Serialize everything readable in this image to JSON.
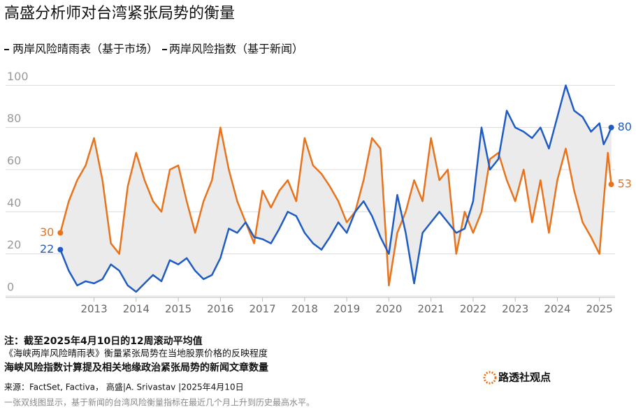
{
  "chart_data": {
    "type": "line",
    "title": "高盛分析师对台湾紧张局势的衡量",
    "x": [
      2012.2,
      2012.4,
      2012.6,
      2012.8,
      2013.0,
      2013.2,
      2013.4,
      2013.6,
      2013.8,
      2014.0,
      2014.2,
      2014.4,
      2014.6,
      2014.8,
      2015.0,
      2015.2,
      2015.4,
      2015.6,
      2015.8,
      2016.0,
      2016.2,
      2016.4,
      2016.6,
      2016.8,
      2017.0,
      2017.2,
      2017.4,
      2017.6,
      2017.8,
      2018.0,
      2018.2,
      2018.4,
      2018.6,
      2018.8,
      2019.0,
      2019.2,
      2019.4,
      2019.6,
      2019.8,
      2020.0,
      2020.2,
      2020.4,
      2020.6,
      2020.8,
      2021.0,
      2021.2,
      2021.4,
      2021.6,
      2021.8,
      2022.0,
      2022.2,
      2022.4,
      2022.6,
      2022.8,
      2023.0,
      2023.2,
      2023.4,
      2023.6,
      2023.8,
      2024.0,
      2024.2,
      2024.4,
      2024.6,
      2024.8,
      2025.0,
      2025.1,
      2025.2,
      2025.28
    ],
    "series": [
      {
        "name": "两岸风险晴雨表（基于市场）",
        "color": "#e8731c",
        "values": [
          30,
          45,
          55,
          62,
          75,
          55,
          25,
          20,
          52,
          68,
          55,
          45,
          40,
          60,
          62,
          45,
          30,
          45,
          55,
          80,
          60,
          45,
          35,
          25,
          50,
          42,
          50,
          55,
          45,
          75,
          62,
          58,
          52,
          45,
          35,
          40,
          55,
          75,
          70,
          5,
          30,
          40,
          55,
          45,
          75,
          55,
          60,
          20,
          40,
          30,
          40,
          65,
          68,
          55,
          45,
          60,
          35,
          55,
          30,
          55,
          70,
          50,
          35,
          28,
          20,
          45,
          68,
          53
        ]
      },
      {
        "name": "两岸风险指数（基于新闻）",
        "color": "#1f5bc4",
        "values": [
          22,
          12,
          5,
          7,
          6,
          8,
          15,
          12,
          5,
          2,
          6,
          10,
          7,
          17,
          15,
          18,
          12,
          8,
          10,
          18,
          32,
          30,
          35,
          28,
          27,
          25,
          32,
          40,
          38,
          30,
          25,
          22,
          28,
          35,
          30,
          40,
          45,
          38,
          28,
          20,
          48,
          30,
          6,
          30,
          35,
          40,
          35,
          30,
          32,
          45,
          80,
          60,
          65,
          88,
          80,
          78,
          75,
          80,
          70,
          85,
          100,
          88,
          85,
          78,
          82,
          72,
          76,
          80
        ]
      }
    ],
    "xlim": [
      2010.9,
      2025.37
    ],
    "xticks": [
      2013,
      2014,
      2015,
      2016,
      2017,
      2018,
      2019,
      2020,
      2021,
      2022,
      2023,
      2024,
      2025
    ],
    "ylim": [
      0,
      100
    ],
    "yticks": [
      0,
      20,
      40,
      60,
      80,
      100
    ],
    "grid": true,
    "fill_between": "#ebebeb",
    "notes": [
      "注：截至2025年4月10日的12周滚动平均值",
      "《海峡两岸风险晴雨表》衡量紧张局势在当地股票价格的反映程度",
      "海峡风险指数计算提及相关地缘政治紧张局势的新闻文章数量"
    ],
    "source": "来源：FactSet, Factiva， 高盛|A. Srivastav |2025年4月10日",
    "caption": "一张双线图显示，基于新闻的台湾风险衡量指标在最近几个月上升到历史最高水平。",
    "logo": "路透社观点"
  }
}
